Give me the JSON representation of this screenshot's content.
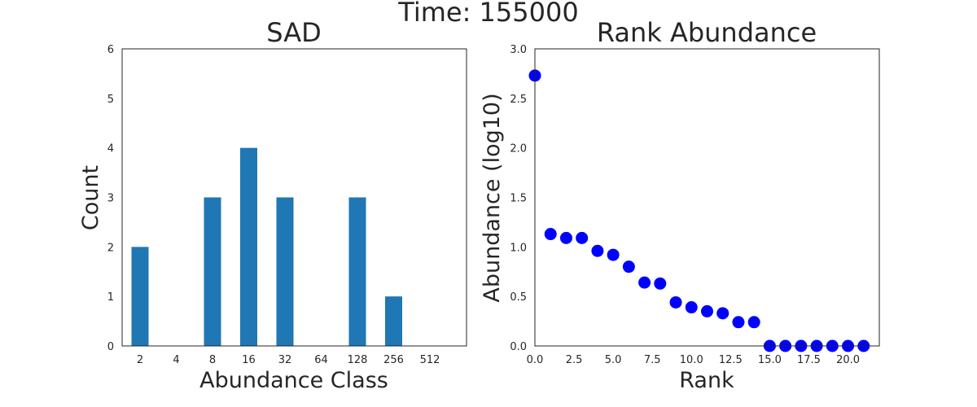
{
  "figure": {
    "suptitle": "Time: 155000"
  },
  "chart_data": [
    {
      "type": "bar",
      "title": "SAD",
      "xlabel": "Abundance Class",
      "ylabel": "Count",
      "categories": [
        "2",
        "4",
        "8",
        "16",
        "32",
        "64",
        "128",
        "256",
        "512"
      ],
      "values": [
        2,
        0,
        3,
        4,
        3,
        0,
        3,
        1,
        0
      ],
      "ylim": [
        0,
        6
      ],
      "yticks": [
        "0",
        "1",
        "2",
        "3",
        "4",
        "5",
        "6"
      ],
      "bar_color": "#1f77b4",
      "grid": false
    },
    {
      "type": "scatter",
      "title": "Rank Abundance",
      "xlabel": "Rank",
      "ylabel": "Abundance (log10)",
      "x": [
        0,
        1,
        2,
        3,
        4,
        5,
        6,
        7,
        8,
        9,
        10,
        11,
        12,
        13,
        14,
        15,
        16,
        17,
        18,
        19,
        20,
        21
      ],
      "y": [
        2.73,
        1.13,
        1.09,
        1.09,
        0.96,
        0.92,
        0.8,
        0.64,
        0.63,
        0.44,
        0.39,
        0.35,
        0.33,
        0.24,
        0.24,
        0.0,
        0.0,
        0.0,
        0.0,
        0.0,
        0.0,
        0.0
      ],
      "xlim": [
        0,
        22
      ],
      "ylim": [
        0,
        3.0
      ],
      "xticks": [
        "0.0",
        "2.5",
        "5.0",
        "7.5",
        "10.0",
        "12.5",
        "15.0",
        "17.5",
        "20.0"
      ],
      "yticks": [
        "0.0",
        "0.5",
        "1.0",
        "1.5",
        "2.0",
        "2.5",
        "3.0"
      ],
      "marker_color": "#0000ff",
      "grid": false
    }
  ]
}
